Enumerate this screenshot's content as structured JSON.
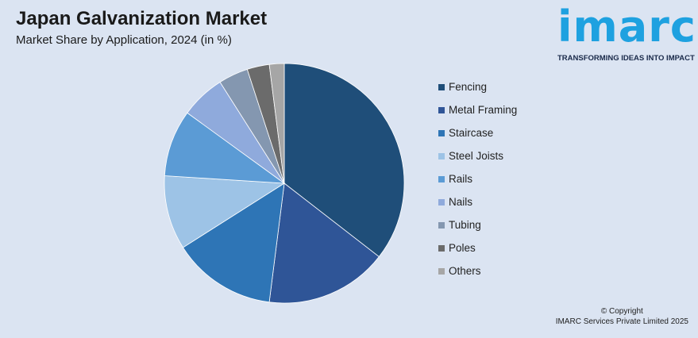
{
  "header": {
    "title": "Japan Galvanization Market",
    "subtitle": "Market Share by Application, 2024 (in %)"
  },
  "logo": {
    "word": "imarc",
    "tagline": "TRANSFORMING IDEAS INTO IMPACT"
  },
  "footer": {
    "copyright_line1": "© Copyright",
    "copyright_line2": "IMARC Services Private Limited 2025"
  },
  "chart_data": {
    "type": "pie",
    "title": "Japan Galvanization Market",
    "subtitle": "Market Share by Application, 2024 (in %)",
    "legend_position": "right",
    "slices": [
      {
        "label": "Fencing",
        "value": 35.5,
        "color": "#1f4e79"
      },
      {
        "label": "Metal Framing",
        "value": 16.5,
        "color": "#2f5597"
      },
      {
        "label": "Staircase",
        "value": 14.0,
        "color": "#2e75b6"
      },
      {
        "label": "Steel Joists",
        "value": 10.0,
        "color": "#9dc3e6"
      },
      {
        "label": "Rails",
        "value": 9.0,
        "color": "#5b9bd5"
      },
      {
        "label": "Nails",
        "value": 6.0,
        "color": "#8faadc"
      },
      {
        "label": "Tubing",
        "value": 4.0,
        "color": "#8497b0"
      },
      {
        "label": "Poles",
        "value": 3.0,
        "color": "#6b6b6b"
      },
      {
        "label": "Others",
        "value": 2.0,
        "color": "#a6a6a6"
      }
    ]
  }
}
